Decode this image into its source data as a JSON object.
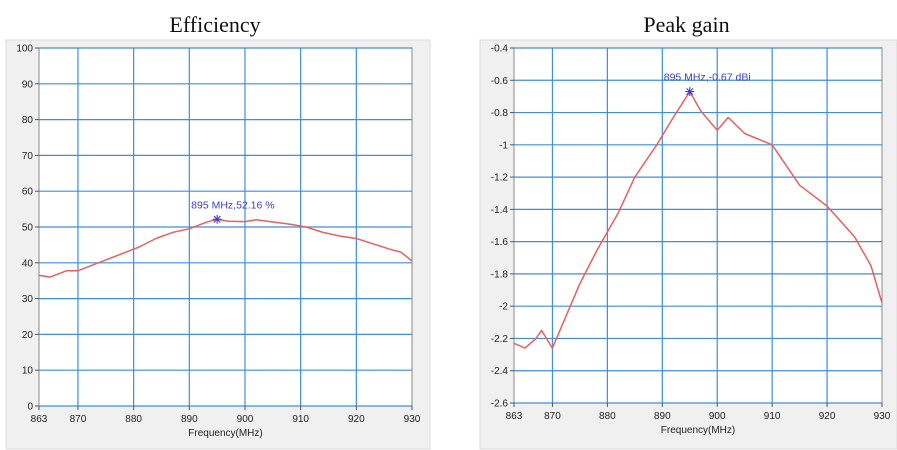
{
  "chart_data": [
    {
      "type": "line",
      "title": "Efficiency",
      "xlabel": "Frequency(MHz)",
      "ylabel": "",
      "xlim": [
        863,
        930
      ],
      "ylim": [
        0,
        100
      ],
      "x_ticks": [
        863,
        870,
        880,
        890,
        900,
        910,
        920,
        930
      ],
      "y_ticks": [
        0,
        10,
        20,
        30,
        40,
        50,
        60,
        70,
        80,
        90,
        100
      ],
      "grid": true,
      "series": [
        {
          "color": "#e8605e",
          "x": [
            863,
            865,
            868,
            870,
            872,
            875,
            878,
            881,
            884,
            887,
            890,
            893,
            895,
            897,
            900,
            902,
            905,
            908,
            911,
            914,
            917,
            920,
            923,
            926,
            928,
            930
          ],
          "y": [
            36.5,
            36,
            37.8,
            37.8,
            39,
            40.8,
            42.6,
            44.4,
            46.8,
            48.5,
            49.5,
            51.3,
            52.16,
            51.6,
            51.5,
            52,
            51.4,
            50.8,
            50,
            48.5,
            47.5,
            46.8,
            45.3,
            43.8,
            43,
            40.5
          ]
        }
      ],
      "marker": {
        "x": 895,
        "y": 52.16,
        "label": "895 MHz,52.16 %"
      },
      "marker_color": "#3d3dd6",
      "grid_color": "#3d8ee0"
    },
    {
      "type": "line",
      "title": "Peak gain",
      "xlabel": "Frequency(MHz)",
      "ylabel": "",
      "xlim": [
        863,
        930
      ],
      "ylim": [
        -2.6,
        -0.4
      ],
      "x_ticks": [
        863,
        870,
        880,
        890,
        900,
        910,
        920,
        930
      ],
      "y_ticks": [
        -2.6,
        -2.4,
        -2.2,
        -2,
        -1.8,
        -1.6,
        -1.4,
        -1.2,
        -1,
        -0.8,
        -0.6,
        -0.4
      ],
      "y_tick_labels": [
        "-2.6",
        "-2.4",
        "-2.2",
        "-2",
        "-1.8",
        "-1.6",
        "-1.4",
        "-1.2",
        "-1",
        "-0.8",
        "-0.6",
        "-0.4"
      ],
      "grid": true,
      "series": [
        {
          "color": "#e8605e",
          "x": [
            863,
            865,
            867,
            868,
            870,
            872,
            875,
            878,
            882,
            885,
            889,
            892,
            895,
            897,
            900,
            902,
            905,
            910,
            915,
            920,
            925,
            928,
            930
          ],
          "y": [
            -2.23,
            -2.26,
            -2.2,
            -2.15,
            -2.26,
            -2.1,
            -1.86,
            -1.66,
            -1.42,
            -1.2,
            -1.0,
            -0.83,
            -0.67,
            -0.79,
            -0.91,
            -0.83,
            -0.93,
            -1.0,
            -1.25,
            -1.38,
            -1.57,
            -1.75,
            -1.98
          ]
        }
      ],
      "marker": {
        "x": 895,
        "y": -0.67,
        "label": "895 MHz,-0.67 dBi"
      },
      "marker_color": "#3d3dd6",
      "grid_color": "#3d8ee0"
    }
  ]
}
